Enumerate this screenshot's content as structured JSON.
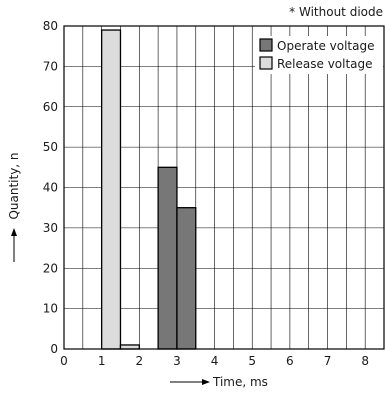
{
  "chart_data": {
    "type": "bar",
    "note": "* Without diode",
    "xlabel": "Time, ms",
    "ylabel": "Quantity, n",
    "xlim": [
      0,
      8.5
    ],
    "ylim": [
      0,
      80
    ],
    "x_ticks": [
      0,
      1,
      2,
      3,
      4,
      5,
      6,
      7,
      8
    ],
    "y_ticks": [
      0,
      10,
      20,
      30,
      40,
      50,
      60,
      70,
      80
    ],
    "bin_width_ms": 0.5,
    "grid": true,
    "legend_position": "top-right",
    "series": [
      {
        "name": "Operate voltage",
        "color": "#777777",
        "bins": [
          {
            "x_start": 2.5,
            "x_end": 3.0,
            "value": 45
          },
          {
            "x_start": 3.0,
            "x_end": 3.5,
            "value": 35
          }
        ]
      },
      {
        "name": "Release voltage",
        "color": "#dcdcdc",
        "bins": [
          {
            "x_start": 1.0,
            "x_end": 1.5,
            "value": 79
          },
          {
            "x_start": 1.5,
            "x_end": 2.0,
            "value": 1
          }
        ]
      }
    ]
  }
}
